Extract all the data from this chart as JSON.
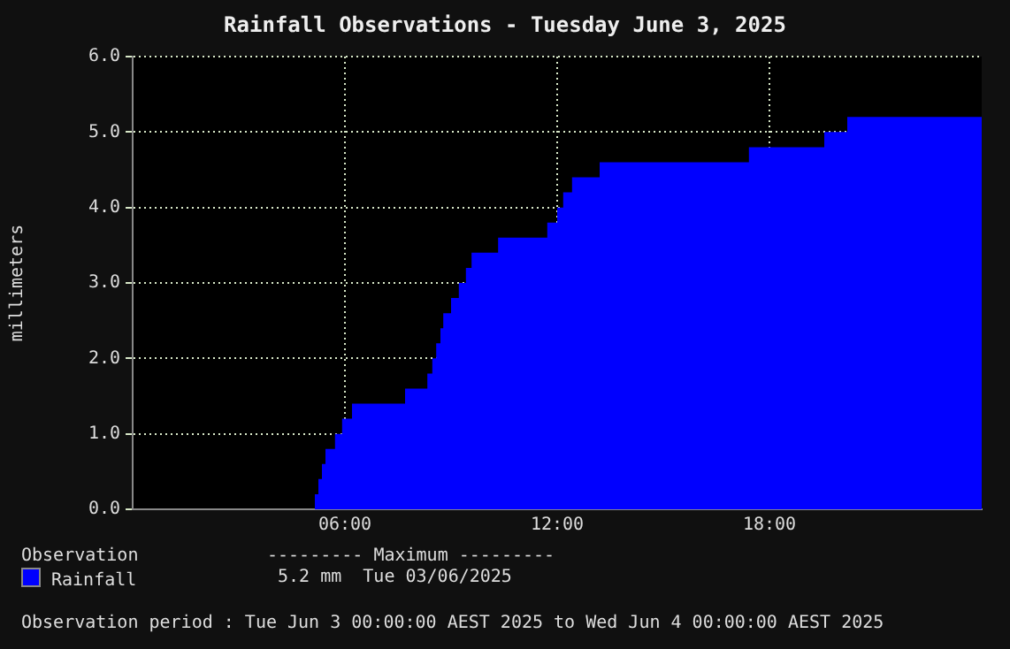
{
  "chart_data": {
    "type": "step",
    "title": "Rainfall Observations - Tuesday June 3, 2025",
    "ylabel": "millimeters",
    "series": [
      {
        "name": "Rainfall",
        "color": "#0000ff",
        "type": "area",
        "x": [
          0,
          5.15,
          5.25,
          5.35,
          5.45,
          5.72,
          5.92,
          6.2,
          7.7,
          8.33,
          8.47,
          8.58,
          8.7,
          8.78,
          9.0,
          9.22,
          9.42,
          9.58,
          10.33,
          11.72,
          12.0,
          12.17,
          12.42,
          13.2,
          17.42,
          19.55,
          20.2,
          24
        ],
        "values": [
          0,
          0.2,
          0.4,
          0.6,
          0.8,
          1.0,
          1.2,
          1.4,
          1.6,
          1.8,
          2.0,
          2.2,
          2.4,
          2.6,
          2.8,
          3.0,
          3.2,
          3.4,
          3.6,
          3.8,
          4.0,
          4.2,
          4.4,
          4.6,
          4.8,
          5.0,
          5.2,
          5.2
        ]
      }
    ],
    "xlim": [
      0,
      24
    ],
    "xticks": [
      {
        "value": 6,
        "label": "06:00"
      },
      {
        "value": 12,
        "label": "12:00"
      },
      {
        "value": 18,
        "label": "18:00"
      }
    ],
    "ylim": [
      0,
      6
    ],
    "yticks": [
      {
        "value": 0,
        "label": "0.0"
      },
      {
        "value": 1,
        "label": "1.0"
      },
      {
        "value": 2,
        "label": "2.0"
      },
      {
        "value": 3,
        "label": "3.0"
      },
      {
        "value": 4,
        "label": "4.0"
      },
      {
        "value": 5,
        "label": "5.0"
      },
      {
        "value": 6,
        "label": "6.0"
      }
    ],
    "grid": true,
    "legend": "bottom left",
    "annotations": [
      "Observation",
      "--------- Maximum ---------",
      "5.2 mm  Tue 03/06/2025",
      "Observation period : Tue Jun 3 00:00:00 AEST 2025 to Wed Jun 4 00:00:00 AEST 2025"
    ]
  }
}
